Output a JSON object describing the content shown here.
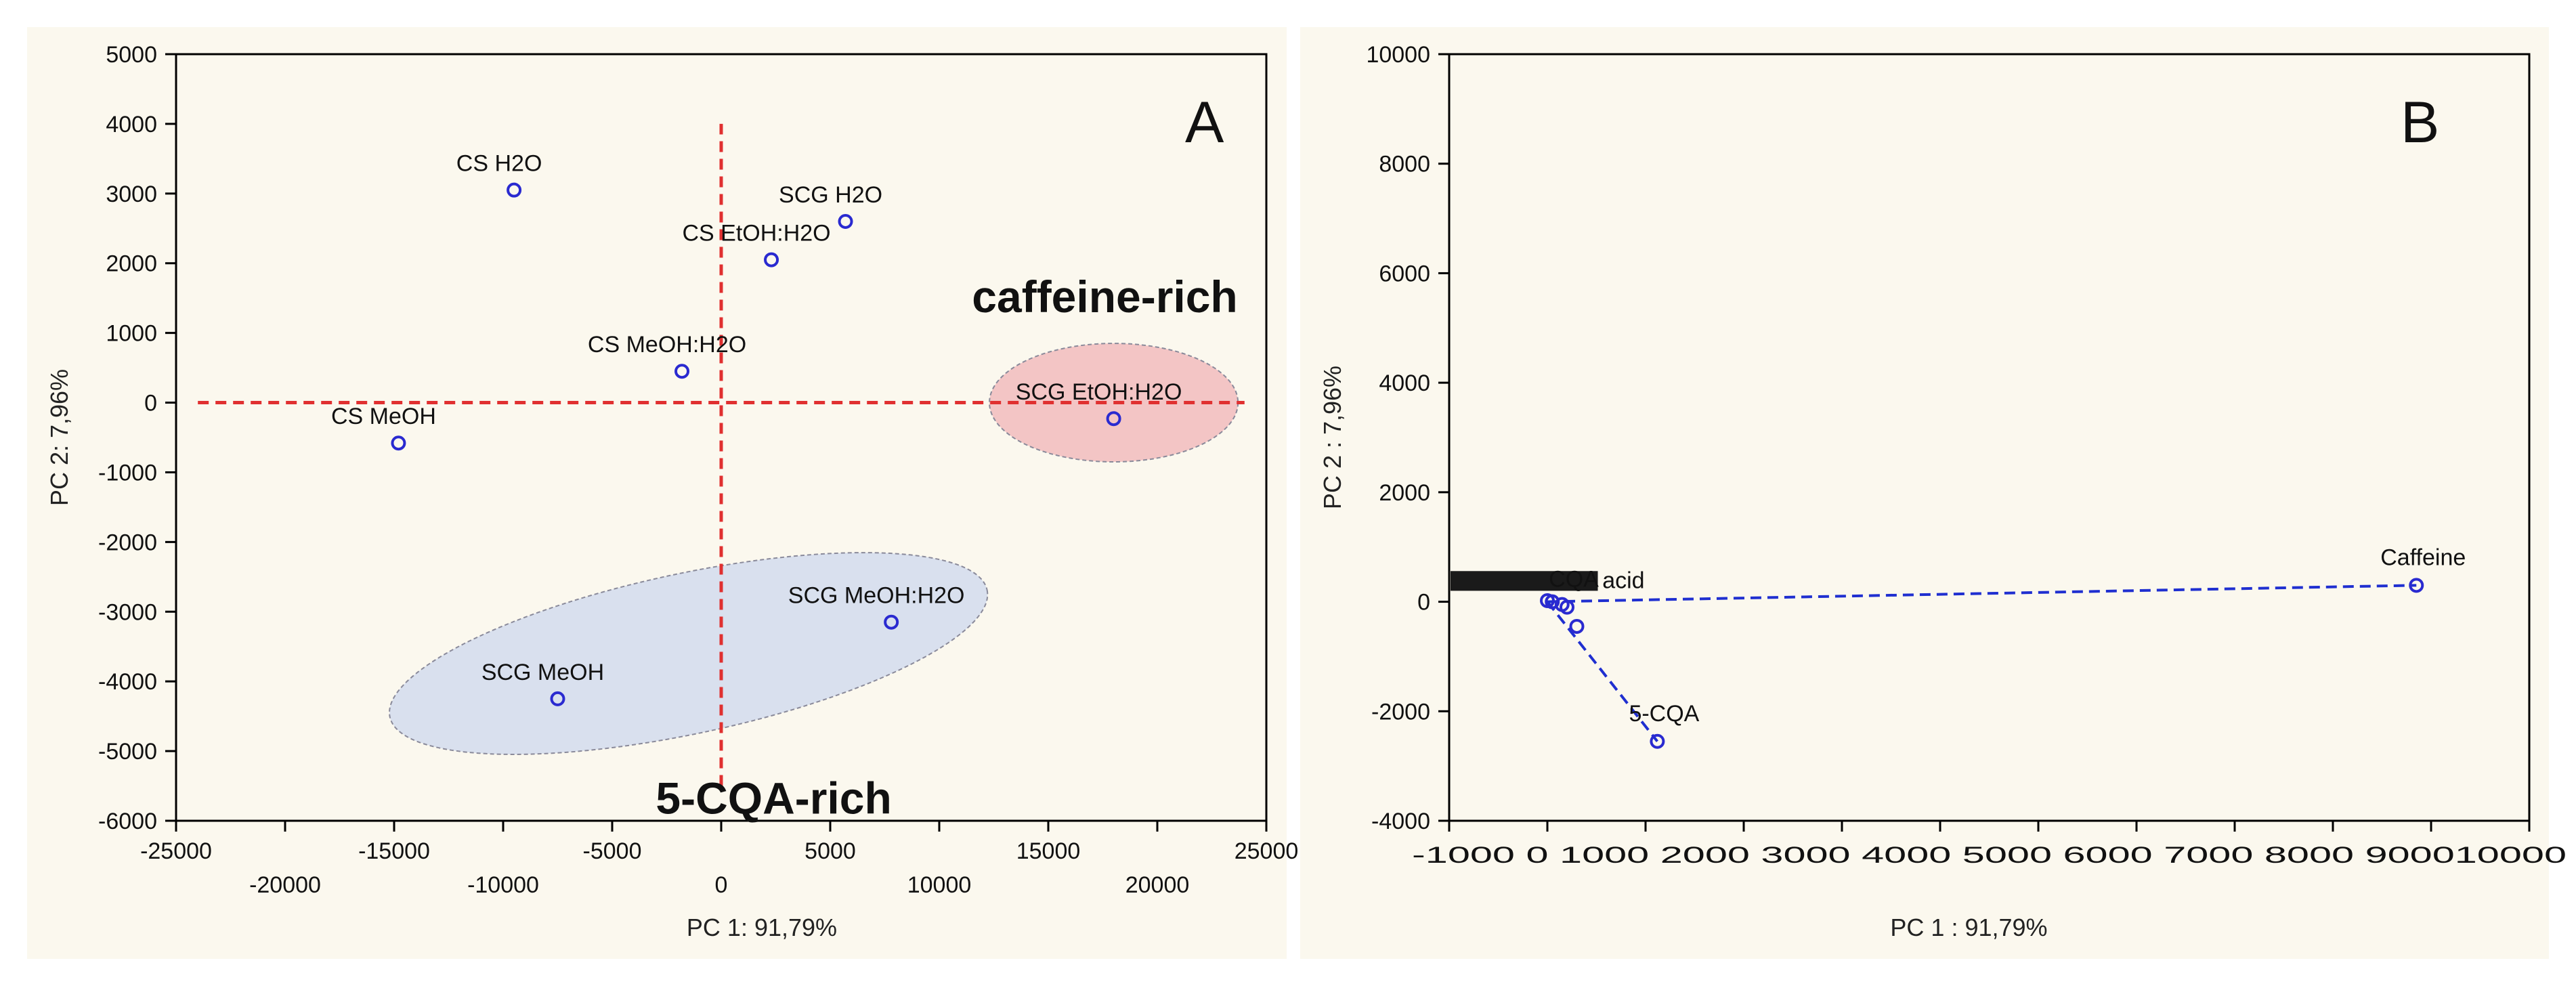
{
  "chart_data": [
    {
      "type": "scatter",
      "panel": "A",
      "xlabel": "PC  1: 91,79%",
      "ylabel": "PC  2:  7,96%",
      "xlim": [
        -25000,
        25000
      ],
      "ylim": [
        -6000,
        5000
      ],
      "xticks_bottom": [
        -20000,
        -10000,
        0,
        10000,
        20000
      ],
      "xticks_top": [
        -25000,
        -15000,
        -5000,
        5000,
        15000,
        25000
      ],
      "yticks": [
        -6000,
        -5000,
        -4000,
        -3000,
        -2000,
        -1000,
        0,
        1000,
        2000,
        3000,
        4000,
        5000
      ],
      "points": [
        {
          "label": "CS H2O",
          "x": -9500,
          "y": 3050
        },
        {
          "label": "SCG H2O",
          "x": 5700,
          "y": 2600
        },
        {
          "label": "CS EtOH:H2O",
          "x": 2300,
          "y": 2050
        },
        {
          "label": "CS MeOH:H2O",
          "x": -1800,
          "y": 450
        },
        {
          "label": "SCG EtOH:H2O",
          "x": 18000,
          "y": -230
        },
        {
          "label": "CS MeOH",
          "x": -14800,
          "y": -580
        },
        {
          "label": "SCG MeOH:H2O",
          "x": 7800,
          "y": -3150
        },
        {
          "label": "SCG MeOH",
          "x": -7500,
          "y": -4250
        }
      ],
      "crosshair": {
        "x": 0,
        "y": 0,
        "xrange": [
          -24000,
          24000
        ],
        "yrange": [
          -5500,
          4000
        ]
      },
      "regions": [
        {
          "label": "caffeine-rich",
          "cx": 18000,
          "cy": 0,
          "rx": 5700,
          "ry": 850,
          "color": "#f3c5c5"
        },
        {
          "label": "5-CQA-rich",
          "cx": -1500,
          "cy": -3600,
          "rx": 14000,
          "ry": 1150,
          "rotate_deg": -12,
          "color": "#d9e0ee"
        }
      ],
      "panel_letter": "A"
    },
    {
      "type": "line",
      "panel": "B",
      "xlabel": "PC  1 : 91,79%",
      "ylabel": "PC  2 :  7,96%",
      "xlim": [
        -1000,
        10000
      ],
      "ylim": [
        -4000,
        10000
      ],
      "xticks": [
        -1000,
        0,
        1000,
        2000,
        3000,
        4000,
        5000,
        6000,
        7000,
        8000,
        9000,
        10000
      ],
      "yticks": [
        -4000,
        -2000,
        0,
        2000,
        4000,
        6000,
        8000,
        10000
      ],
      "xtick_label_text": "-1000  0  1000 2000 3000 4000 5000 6000 7000 8000 900010000",
      "points": [
        {
          "label": "Caffeine",
          "x": 8850,
          "y": 300
        },
        {
          "label": "5-CQA",
          "x": 1120,
          "y": -2550
        },
        {
          "label": "CQA",
          "x": 200,
          "y": -100
        },
        {
          "label": "",
          "x": 300,
          "y": -450
        },
        {
          "label": "",
          "x": 50,
          "y": 0
        },
        {
          "label": "",
          "x": 150,
          "y": -50
        },
        {
          "label": "",
          "x": 0,
          "y": 20
        }
      ],
      "cluster_label": "acid",
      "loading_lines": [
        {
          "from": [
            0,
            0
          ],
          "to": [
            8850,
            300
          ]
        },
        {
          "from": [
            0,
            0
          ],
          "to": [
            1120,
            -2550
          ]
        }
      ],
      "panel_letter": "B"
    }
  ]
}
